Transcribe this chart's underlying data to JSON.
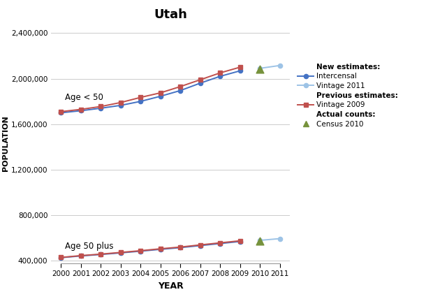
{
  "title": "Utah",
  "xlabel": "YEAR",
  "ylabel": "POPULATION",
  "years_main": [
    2000,
    2001,
    2002,
    2003,
    2004,
    2005,
    2006,
    2007,
    2008,
    2009
  ],
  "years_v11": [
    2010,
    2011
  ],
  "intercensal_under50": [
    1700000,
    1718000,
    1740000,
    1765000,
    1800000,
    1845000,
    1895000,
    1960000,
    2020000,
    2068000
  ],
  "vintage2011_under50": [
    2090000,
    2115000
  ],
  "vintage2009_under50": [
    1710000,
    1730000,
    1755000,
    1790000,
    1835000,
    1875000,
    1930000,
    1990000,
    2050000,
    2100000
  ],
  "census2010_under50": 2080000,
  "intercensal_over50": [
    428000,
    443000,
    456000,
    470000,
    485000,
    501000,
    516000,
    534000,
    552000,
    570000
  ],
  "vintage2011_over50": [
    580000,
    595000
  ],
  "vintage2009_over50": [
    430000,
    446000,
    459000,
    474000,
    489000,
    506000,
    521000,
    540000,
    558000,
    576000
  ],
  "census2010_over50": 572000,
  "color_intercensal": "#4472C4",
  "color_vintage2011": "#9DC3E6",
  "color_vintage2009": "#C0504D",
  "color_census": "#76923C",
  "ylim": [
    380000,
    2480000
  ],
  "yticks": [
    400000,
    800000,
    1200000,
    1600000,
    2000000,
    2400000
  ],
  "xticks_main": [
    2000,
    2001,
    2002,
    2003,
    2004,
    2005,
    2006,
    2007,
    2008,
    2009
  ],
  "xticks_ext": [
    2010,
    2011
  ],
  "label_under50": "Age < 50",
  "label_over50": "Age 50 plus",
  "legend_new_header": "New estimates:",
  "legend_intercensal": "Intercensal",
  "legend_vintage2011": "Vintage 2011",
  "legend_prev_header": "Previous estimates:",
  "legend_vintage2009": "Vintage 2009",
  "legend_actual_header": "Actual counts:",
  "legend_census": "Census 2010"
}
